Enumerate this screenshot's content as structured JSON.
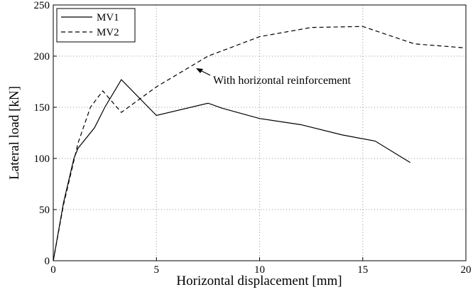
{
  "chart_data": {
    "type": "line",
    "xlabel": "Horizontal displacement [mm]",
    "ylabel": "Lateral load [kN]",
    "annotation": "With horizontal reinforcement",
    "xlim": [
      0,
      20
    ],
    "xticks": [
      0,
      5,
      10,
      15,
      20
    ],
    "ylim": [
      0,
      250
    ],
    "yticks": [
      0,
      50,
      100,
      150,
      200,
      250
    ],
    "grid": true,
    "legend": "upper left",
    "series": [
      {
        "name": "MV1",
        "color": "#000000",
        "linestyle": "solid",
        "x": [
          0,
          0.5,
          1,
          1.2,
          2,
          2.5,
          3.3,
          5,
          7.5,
          8.2,
          10,
          12,
          14,
          15.6,
          17.3
        ],
        "values": [
          0,
          57,
          100,
          110,
          130,
          150,
          177,
          142,
          154,
          149,
          139,
          133,
          123,
          117,
          96
        ]
      },
      {
        "name": "MV2",
        "color": "#000000",
        "linestyle": "dashed",
        "x": [
          0,
          0.5,
          1.2,
          1.8,
          2.4,
          3.3,
          5,
          7.5,
          10,
          12.5,
          15,
          17.5,
          20
        ],
        "values": [
          0,
          55,
          115,
          150,
          166,
          145,
          170,
          200,
          219,
          228,
          229,
          212,
          208
        ]
      }
    ]
  }
}
